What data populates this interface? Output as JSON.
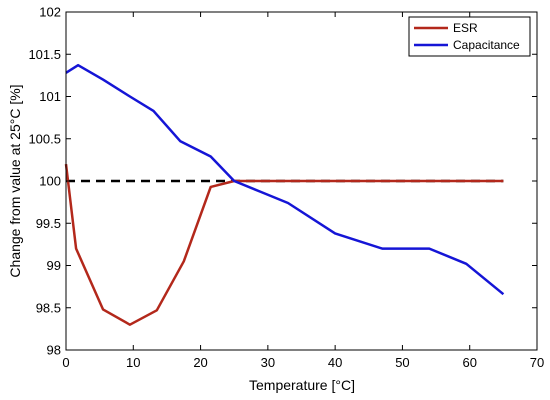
{
  "chart_data": {
    "type": "line",
    "xlabel": "Temperature [°C]",
    "ylabel": "Change from value at 25°C [%]",
    "xlim": [
      0,
      70
    ],
    "ylim": [
      98,
      102
    ],
    "xticks": [
      0,
      10,
      20,
      30,
      40,
      50,
      60,
      70
    ],
    "yticks": [
      98,
      98.5,
      99,
      99.5,
      100,
      100.5,
      101,
      101.5,
      102
    ],
    "xtick_labels": [
      "0",
      "10",
      "20",
      "30",
      "40",
      "50",
      "60",
      "70"
    ],
    "ytick_labels": [
      "98",
      "98.5",
      "99",
      "99.5",
      "100",
      "100.5",
      "101",
      "101.5",
      "102"
    ],
    "grid": false,
    "legend_position": "top-right",
    "reference_line": {
      "y": 100,
      "style": "dashed",
      "color": "#000000"
    },
    "series": [
      {
        "name": "ESR",
        "color": "#b3281b",
        "x": [
          0,
          1.5,
          5.5,
          9.5,
          13.5,
          17.5,
          21.5,
          25,
          30,
          35,
          40,
          45,
          50,
          55,
          60,
          65
        ],
        "y": [
          100.2,
          99.2,
          98.48,
          98.3,
          98.47,
          99.05,
          99.93,
          100.0,
          100.0,
          100.0,
          100.0,
          100.0,
          100.0,
          100.0,
          100.0,
          100.0
        ]
      },
      {
        "name": "Capacitance",
        "color": "#1515d6",
        "x": [
          0,
          1.8,
          5.5,
          9.5,
          13,
          17,
          21.5,
          25,
          29,
          33,
          40,
          47,
          54,
          59.5,
          65
        ],
        "y": [
          101.28,
          101.37,
          101.2,
          101.0,
          100.83,
          100.47,
          100.29,
          100.0,
          99.87,
          99.74,
          99.38,
          99.2,
          99.2,
          99.02,
          98.66
        ]
      }
    ]
  }
}
